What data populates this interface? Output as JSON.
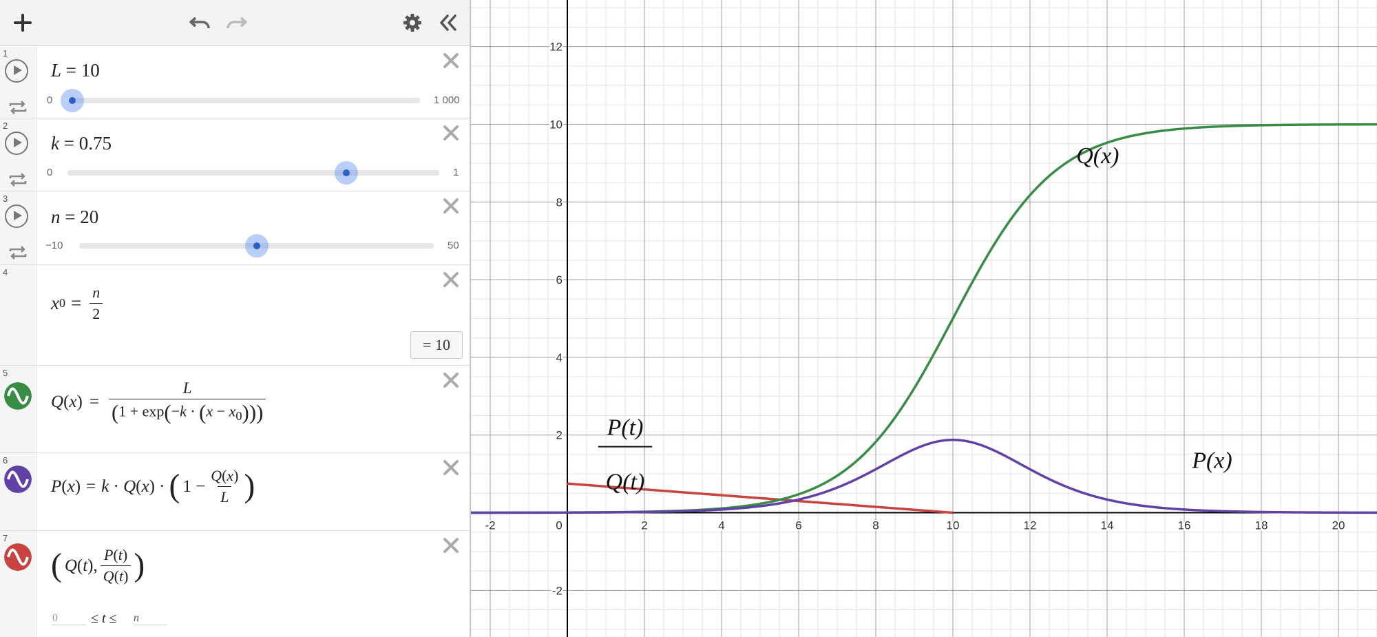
{
  "toolbar": {
    "add_icon": "plus-icon",
    "undo_icon": "undo-icon",
    "redo_icon": "redo-icon",
    "settings_icon": "gear-icon",
    "collapse_icon": "double-chevron-left-icon"
  },
  "expressions": [
    {
      "num": "1",
      "type": "slider",
      "var": "L",
      "eq": "=",
      "value": "10",
      "min": "0",
      "max": "1 000",
      "fraction": 0.01
    },
    {
      "num": "2",
      "type": "slider",
      "var": "k",
      "eq": "=",
      "value": "0.75",
      "min": "0",
      "max": "1",
      "fraction": 0.75
    },
    {
      "num": "3",
      "type": "slider",
      "var": "n",
      "eq": "=",
      "value": "20",
      "min": "−10",
      "max": "50",
      "fraction": 0.5
    },
    {
      "num": "4",
      "type": "definition",
      "lhs": "x",
      "lhs_sub": "0",
      "frac_num": "n",
      "frac_den": "2",
      "result": "= 10"
    },
    {
      "num": "5",
      "type": "function",
      "color": "#388c46",
      "text": "Q(x) = L / (1 + exp(−k·(x − x0)))"
    },
    {
      "num": "6",
      "type": "function",
      "color": "#6042a6",
      "text": "P(x) = k·Q(x)·(1 − Q(x)/L)"
    },
    {
      "num": "7",
      "type": "parametric",
      "color": "#c74440",
      "text": "(Q(t), P(t)/Q(t))",
      "t_min": "0",
      "t_max": "n"
    }
  ],
  "graph": {
    "x_ticks": [
      "-2",
      "0",
      "2",
      "4",
      "6",
      "8",
      "10",
      "12",
      "14",
      "16",
      "18",
      "20"
    ],
    "y_ticks": [
      "12",
      "10",
      "8",
      "6",
      "4",
      "2",
      "-2"
    ],
    "labels": {
      "q": "Q(x)",
      "p": "P(x)",
      "ratio_num": "P(t)",
      "ratio_den": "Q(t)"
    },
    "colors": {
      "q": "#388c46",
      "p": "#6042a6",
      "param": "#c74440",
      "axis": "#000000",
      "grid_major": "#9e9e9e",
      "grid_minor": "#e3e3e3"
    }
  },
  "chart_data": {
    "type": "line",
    "xlim": [
      -2.5,
      21
    ],
    "ylim": [
      -3.2,
      13.2
    ],
    "grid": true,
    "params": {
      "L": 10,
      "k": 0.75,
      "n": 20,
      "x0": 10
    },
    "series": [
      {
        "name": "Q(x)",
        "function": "L/(1+exp(-k(x-x0)))"
      },
      {
        "name": "P(x)",
        "function": "k·Q(x)·(1-Q(x)/L)"
      },
      {
        "name": "P(t)/Q(t)",
        "parametric": "(Q(t), P(t)/Q(t)), 0≤t≤n"
      }
    ]
  }
}
